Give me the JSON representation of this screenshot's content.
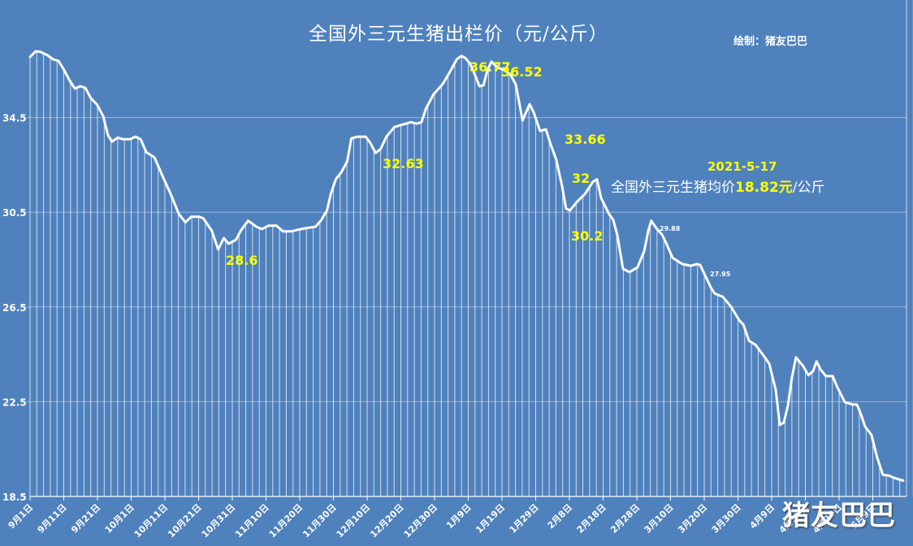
{
  "chart_data": {
    "type": "line",
    "title": "全国外三元生猪出栏价（元/公斤）",
    "author": "绘制：猪友巴巴",
    "watermark": "猪友巴巴",
    "xlabel": "",
    "ylabel": "",
    "ylim": [
      18.5,
      38.5
    ],
    "yticks": [
      "18.5",
      "22.5",
      "26.5",
      "30.5",
      "34.5"
    ],
    "grid": true,
    "legend": null,
    "x_tick_labels": [
      "9月1日",
      "9月11日",
      "9月21日",
      "10月1日",
      "10月11日",
      "10月21日",
      "10月31日",
      "11月10日",
      "11月20日",
      "11月30日",
      "12月10日",
      "12月20日",
      "12月30日",
      "1月9日",
      "1月19日",
      "1月29日",
      "2月8日",
      "2月18日",
      "2月28日",
      "3月10日",
      "3月20日",
      "3月30日",
      "4月9日",
      "4月19日",
      "4月29日",
      "5月9日"
    ],
    "x_tick_days": [
      0,
      10,
      20,
      30,
      40,
      50,
      60,
      70,
      80,
      90,
      100,
      110,
      120,
      130,
      140,
      150,
      160,
      170,
      180,
      190,
      200,
      210,
      220,
      230,
      240,
      250
    ],
    "series": [
      {
        "name": "外三元生猪出栏价",
        "day": [
          0,
          1.7,
          3.1,
          5.1,
          6.8,
          8.4,
          9.8,
          11.6,
          13.3,
          14.9,
          16.4,
          18.1,
          19.8,
          21.7,
          23.1,
          24.3,
          26,
          27.7,
          29.6,
          31.3,
          32.8,
          34.5,
          36.9,
          39.3,
          41.7,
          44.2,
          46.1,
          47.8,
          50.2,
          51.4,
          53.9,
          55.8,
          57.5,
          58.9,
          61.1,
          62.5,
          64.7,
          67.1,
          68.8,
          70.7,
          73.1,
          75,
          77.5,
          79.4,
          81.6,
          84.7,
          86.4,
          88.1,
          89.2,
          90.7,
          92.4,
          94.1,
          95.3,
          97.2,
          99.6,
          101,
          102.5,
          104,
          105.7,
          108.1,
          110.5,
          113,
          114.7,
          116.1,
          117.5,
          119.7,
          121.4,
          122.5,
          124.9,
          126.6,
          128,
          129.2,
          130.4,
          131.6,
          133.3,
          134.5,
          135.7,
          136.9,
          138.6,
          140.5,
          142.4,
          144.1,
          146.1,
          148.2,
          149.4,
          151.3,
          153,
          154.5,
          156.1,
          157.8,
          159,
          160.2,
          162.2,
          164.6,
          167,
          168.2,
          169.4,
          171.8,
          173,
          174.2,
          175.9,
          177.8,
          180.2,
          182.2,
          183.4,
          184.3,
          185.8,
          187.5,
          188.7,
          190.6,
          193.5,
          196,
          197.9,
          198.8,
          202,
          203.1,
          205.5,
          207.9,
          210.4,
          211.6,
          213.3,
          215.2,
          217.6,
          219.3,
          220,
          221.2,
          222.4,
          223.6,
          224.8,
          226,
          227.2,
          229.2,
          230.9,
          232.3,
          233.3,
          234.5,
          236.1,
          238.1,
          239.3,
          241.7,
          244.1,
          245.3,
          246.5,
          247.7,
          249.6,
          251.3,
          253,
          254.7,
          256.6,
          259,
          260.2,
          262.2
        ],
        "price": [
          37.06,
          37.3,
          37.27,
          37.13,
          36.96,
          36.89,
          36.58,
          36.1,
          35.72,
          35.82,
          35.75,
          35.3,
          35.06,
          34.55,
          33.76,
          33.48,
          33.65,
          33.58,
          33.58,
          33.69,
          33.58,
          33.03,
          32.82,
          32.03,
          31.27,
          30.41,
          30.07,
          30.31,
          30.31,
          30.24,
          29.72,
          28.93,
          29.41,
          29.17,
          29.34,
          29.72,
          30.14,
          29.89,
          29.79,
          29.93,
          29.93,
          29.69,
          29.69,
          29.76,
          29.82,
          29.89,
          30.17,
          30.58,
          31.27,
          31.89,
          32.2,
          32.65,
          33.62,
          33.69,
          33.69,
          33.41,
          33,
          33.17,
          33.69,
          34.1,
          34.2,
          34.3,
          34.24,
          34.3,
          34.89,
          35.48,
          35.75,
          35.93,
          36.51,
          36.96,
          37.1,
          37,
          36.79,
          36.44,
          35.82,
          35.86,
          36.51,
          36.86,
          36.62,
          36.51,
          36.34,
          35.89,
          34.38,
          35.06,
          34.72,
          33.93,
          34,
          33.34,
          32.72,
          31.62,
          30.65,
          30.58,
          30.93,
          31.27,
          31.79,
          31.89,
          31.1,
          30.41,
          30.17,
          29.55,
          28.11,
          27.97,
          28.17,
          28.86,
          29.72,
          30.14,
          29.82,
          29.55,
          29.2,
          28.58,
          28.31,
          28.24,
          28.31,
          28.27,
          27.31,
          27.07,
          26.93,
          26.52,
          25.93,
          25.76,
          25.07,
          24.9,
          24.45,
          24.1,
          23.69,
          23.0,
          21.52,
          21.62,
          22.31,
          23.51,
          24.37,
          24.03,
          23.62,
          23.79,
          24.2,
          23.86,
          23.58,
          23.58,
          23.17,
          22.48,
          22.38,
          22.38,
          21.96,
          21.45,
          21.1,
          20.14,
          19.41,
          19.38,
          19.27,
          19.17
        ],
        "data_labels": [
          {
            "text": "28.6",
            "day": 59,
            "price": 28.6,
            "color": "#ffff00",
            "size": "large"
          },
          {
            "text": "32.63",
            "day": 112,
            "price": 32.63,
            "color": "#ffff00",
            "size": "large"
          },
          {
            "text": "36.77",
            "day": 131,
            "price": 36.77,
            "color": "#ffff00",
            "size": "large"
          },
          {
            "text": "36.52",
            "day": 139,
            "price": 36.52,
            "color": "#ffff00",
            "size": "large"
          },
          {
            "text": "33.66",
            "day": 158,
            "price": 33.66,
            "color": "#ffff00",
            "size": "large"
          },
          {
            "text": "32",
            "day": 163,
            "price": 32.0,
            "color": "#ffff00",
            "size": "large"
          },
          {
            "text": "30.2",
            "day": 163,
            "price": 30.2,
            "color": "#ffff00",
            "size": "large"
          },
          {
            "text": "29.88",
            "day": 184,
            "price": 29.88,
            "color": "#ffffff",
            "size": "small"
          },
          {
            "text": "27.95",
            "day": 198,
            "price": 27.95,
            "color": "#ffffff",
            "size": "small"
          }
        ]
      }
    ],
    "annotation": {
      "date": "2021-5-17",
      "text_prefix": "全国外三元生猪均价",
      "value": "18.82元",
      "text_suffix": "/公斤"
    },
    "colors": {
      "background": "#4f81bd",
      "line": "#ffffff",
      "highlight": "#ffff00",
      "grid": "#9bb4d9"
    }
  }
}
